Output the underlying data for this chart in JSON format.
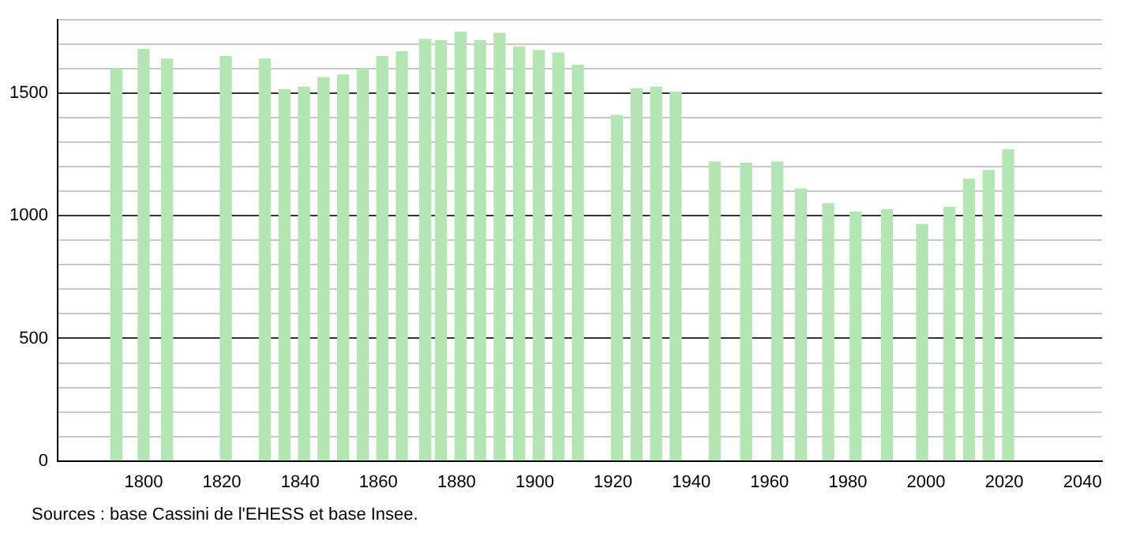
{
  "chart_data": {
    "type": "bar",
    "color": "#b3e6b3",
    "x": [
      1793,
      1800,
      1806,
      1821,
      1831,
      1836,
      1841,
      1846,
      1851,
      1856,
      1861,
      1866,
      1872,
      1876,
      1881,
      1886,
      1891,
      1896,
      1901,
      1906,
      1911,
      1921,
      1926,
      1931,
      1936,
      1946,
      1954,
      1962,
      1968,
      1975,
      1982,
      1990,
      1999,
      2006,
      2011,
      2016,
      2021
    ],
    "values": [
      1600,
      1680,
      1640,
      1650,
      1640,
      1515,
      1525,
      1565,
      1575,
      1600,
      1650,
      1670,
      1720,
      1715,
      1750,
      1715,
      1745,
      1690,
      1675,
      1665,
      1615,
      1410,
      1520,
      1525,
      1505,
      1220,
      1215,
      1220,
      1110,
      1050,
      1015,
      1025,
      965,
      1035,
      1150,
      1185,
      1270
    ],
    "xlim": [
      1778,
      2045
    ],
    "xticks": [
      1800,
      1820,
      1840,
      1860,
      1880,
      1900,
      1920,
      1940,
      1960,
      1980,
      2000,
      2020,
      2040
    ],
    "ylim": [
      0,
      1800
    ],
    "yticks": [
      0,
      {
        "value": 100,
        "label": null
      },
      {
        "value": 200,
        "label": null
      },
      {
        "value": 300,
        "label": null
      },
      {
        "value": 400,
        "label": null
      },
      500,
      {
        "value": 600,
        "label": null
      },
      {
        "value": 700,
        "label": null
      },
      {
        "value": 800,
        "label": null
      },
      {
        "value": 900,
        "label": null
      },
      1000,
      {
        "value": 1100,
        "label": null
      },
      {
        "value": 1200,
        "label": null
      },
      {
        "value": 1300,
        "label": null
      },
      {
        "value": 1400,
        "label": null
      },
      1500,
      {
        "value": 1600,
        "label": null
      },
      {
        "value": 1700,
        "label": null
      },
      {
        "value": 1800,
        "label": null
      }
    ],
    "grid": "y",
    "legend": false,
    "annotations": [
      "Sources : base Cassini de l'EHESS et base Insee."
    ]
  }
}
